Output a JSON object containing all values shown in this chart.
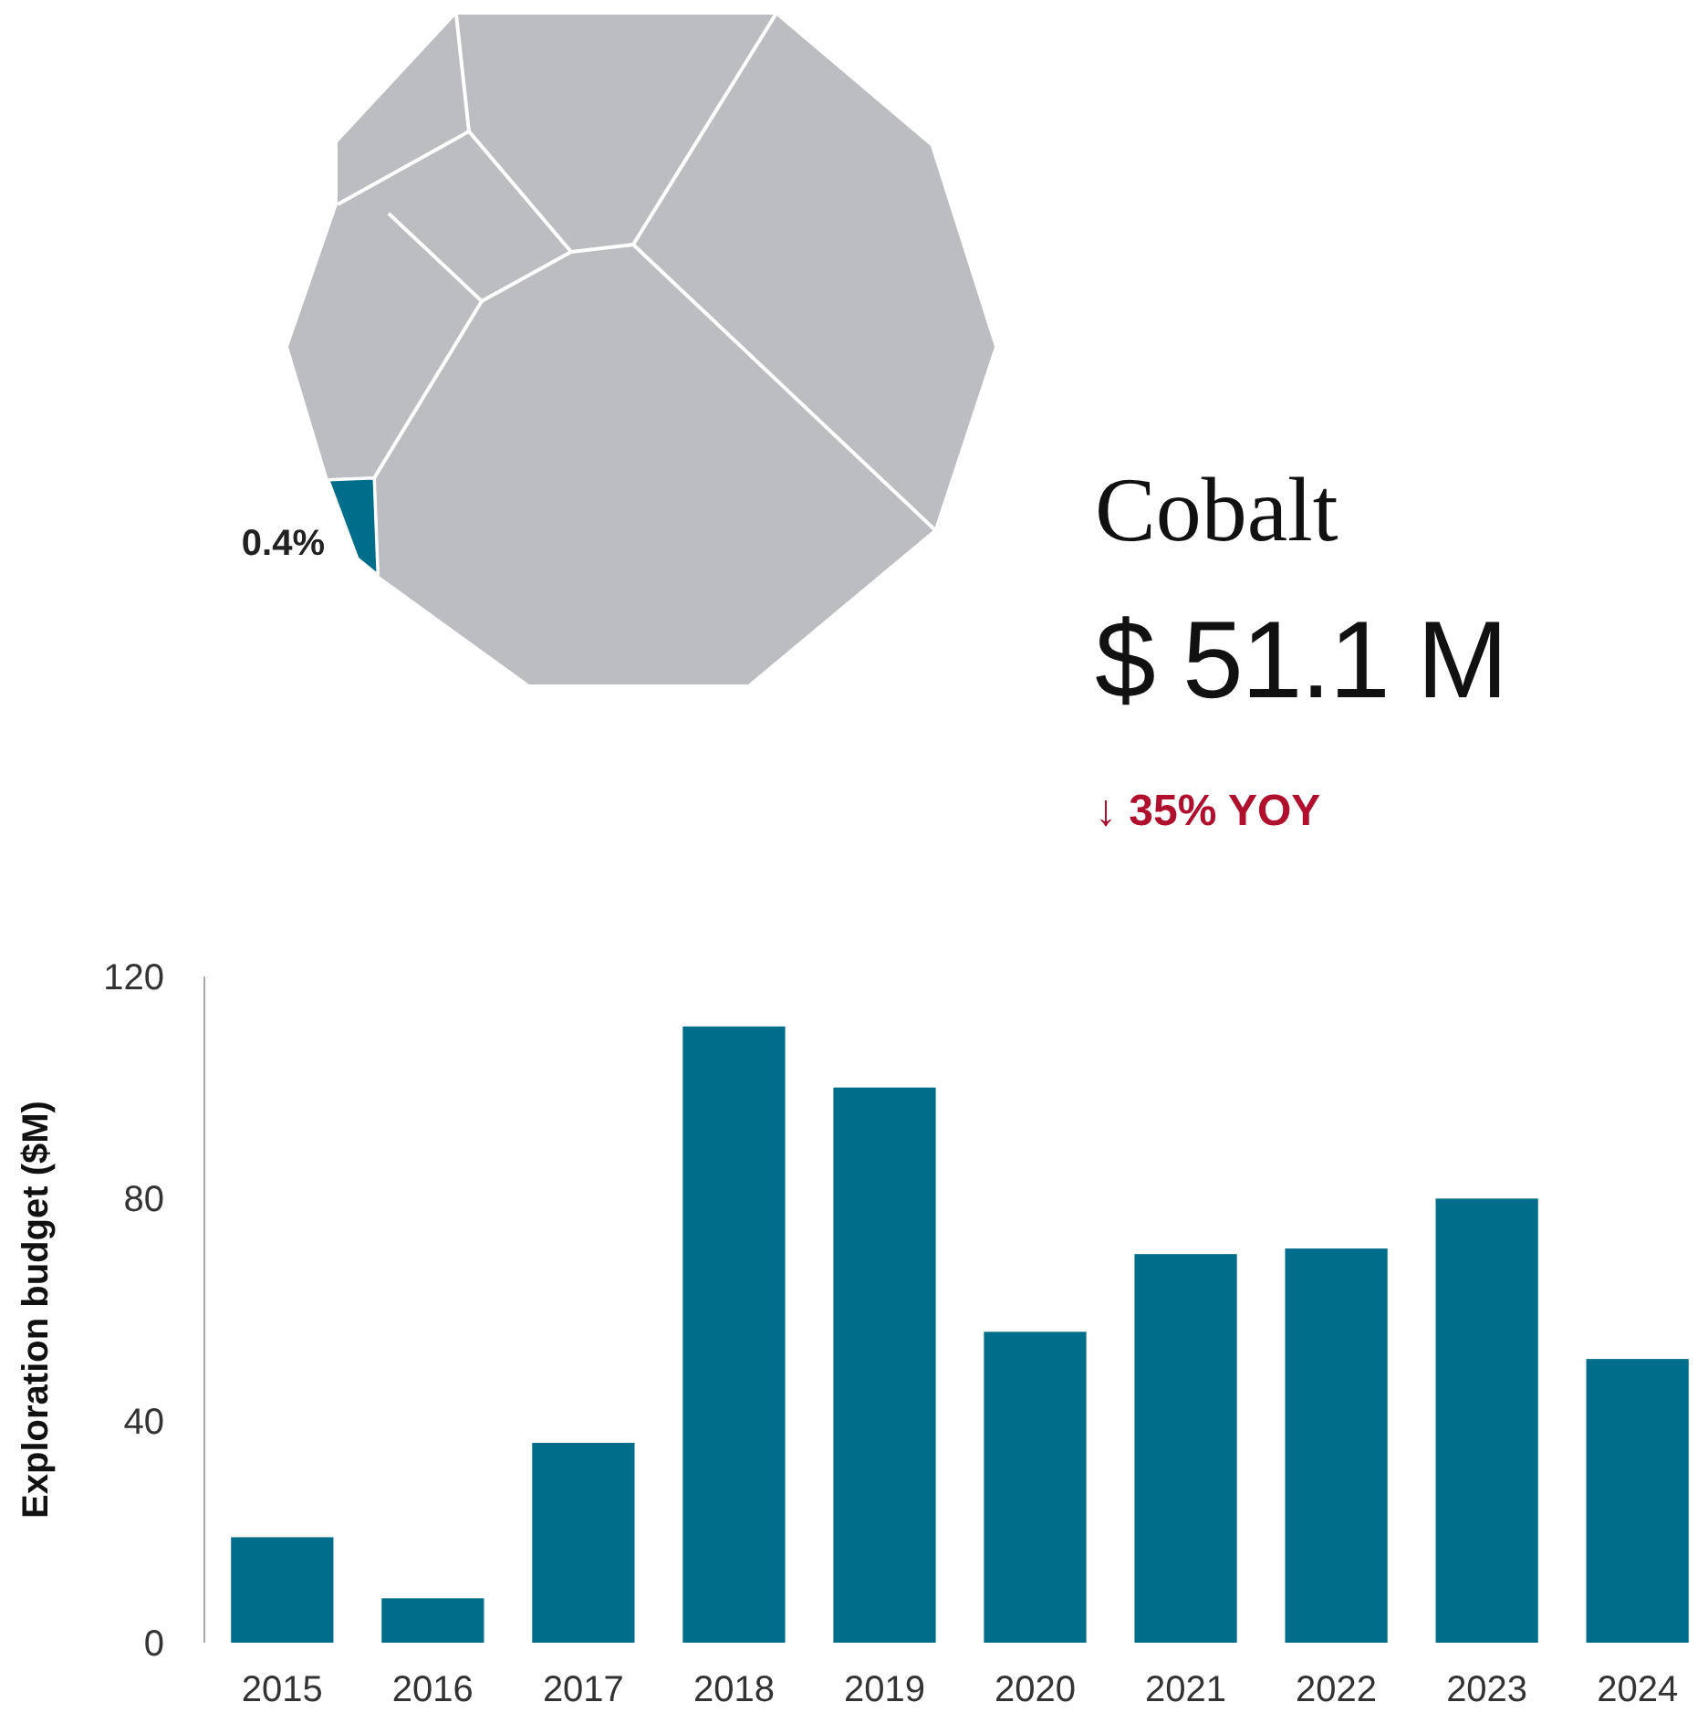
{
  "chart_data": [
    {
      "type": "other",
      "annotations": [
        "0.4%"
      ]
    },
    {
      "type": "other",
      "title": "Cobalt",
      "subtitle": "$ 51.1 M",
      "annotations": [
        "↓ 35% YOY"
      ]
    },
    {
      "type": "bar",
      "ylabel": "Exploration budget ($M)",
      "categories": [
        "2015",
        "2016",
        "2017",
        "2018",
        "2019",
        "2020",
        "2021",
        "2022",
        "2023",
        "2024"
      ],
      "values": [
        19,
        8,
        36,
        111,
        100,
        56,
        70,
        71,
        80,
        51.1
      ],
      "color": "#006d8a",
      "ylim": [
        0,
        120
      ],
      "yticks": [
        0,
        40,
        80,
        120
      ],
      "grid": false
    }
  ]
}
